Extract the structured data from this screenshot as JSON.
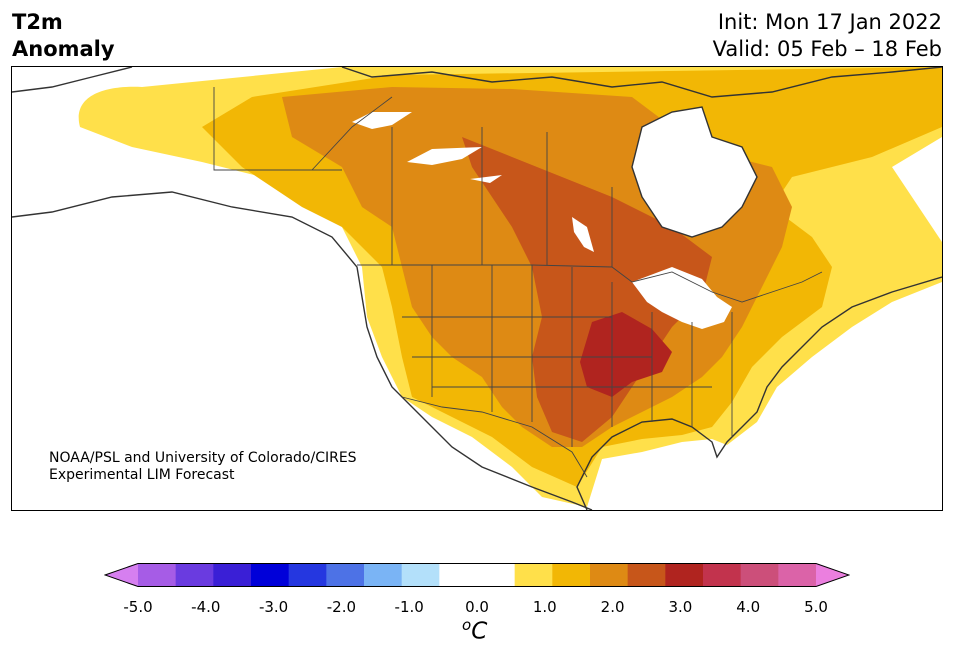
{
  "header": {
    "title_line1": "T2m",
    "title_line2": "Anomaly",
    "init_line": "Init: Mon 17 Jan 2022",
    "valid_line": "Valid: 05 Feb – 18 Feb"
  },
  "credit": {
    "line1": "NOAA/PSL and University of Colorado/CIRES",
    "line2": "Experimental LIM Forecast"
  },
  "map": {
    "region": "North America",
    "field": "2 m temperature anomaly",
    "max_anomaly_region": "central United States (Missouri / Arkansas)",
    "max_anomaly_level": 3.0
  },
  "colorbar": {
    "unit_base": "C",
    "unit_sup": "o",
    "ticks": [
      "-5.0",
      "-4.0",
      "-3.0",
      "-2.0",
      "-1.0",
      "0.0",
      "1.0",
      "2.0",
      "3.0",
      "4.0",
      "5.0"
    ],
    "bin_colors": [
      "#a65ce6",
      "#6a3be0",
      "#3a1fd6",
      "#0000d9",
      "#2537e0",
      "#4d72e6",
      "#7ab4f5",
      "#b3e0fa",
      "#ffffff",
      "#ffffff",
      "#ffe04a",
      "#f2b705",
      "#de8a14",
      "#c7561a",
      "#b0241f",
      "#c2334d",
      "#cc4f7a",
      "#db63a8"
    ],
    "under_color": "#d67ff0",
    "over_color": "#eb7fdf"
  }
}
